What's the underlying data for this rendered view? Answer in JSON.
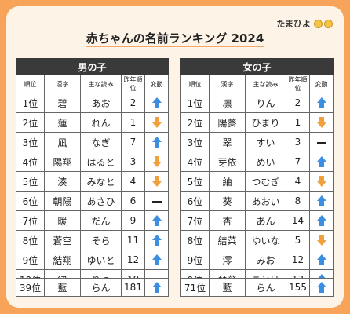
{
  "logo": "たまひよ",
  "title": "赤ちゃんの名前ランキング 2024",
  "col_headers": {
    "rank": "順位",
    "kanji": "漢字",
    "reading": "主な読み",
    "last": "昨年順位",
    "change": "変動"
  },
  "boys": {
    "title": "男の子",
    "rows": [
      {
        "rank": "1位",
        "kanji": "碧",
        "reading": "あお",
        "last": "2",
        "change": "up"
      },
      {
        "rank": "2位",
        "kanji": "蓮",
        "reading": "れん",
        "last": "1",
        "change": "down"
      },
      {
        "rank": "3位",
        "kanji": "凪",
        "reading": "なぎ",
        "last": "7",
        "change": "up"
      },
      {
        "rank": "4位",
        "kanji": "陽翔",
        "reading": "はると",
        "last": "3",
        "change": "down"
      },
      {
        "rank": "5位",
        "kanji": "湊",
        "reading": "みなと",
        "last": "4",
        "change": "down"
      },
      {
        "rank": "6位",
        "kanji": "朝陽",
        "reading": "あさひ",
        "last": "6",
        "change": "same"
      },
      {
        "rank": "7位",
        "kanji": "暖",
        "reading": "だん",
        "last": "9",
        "change": "up"
      },
      {
        "rank": "8位",
        "kanji": "蒼空",
        "reading": "そら",
        "last": "11",
        "change": "up"
      },
      {
        "rank": "9位",
        "kanji": "結翔",
        "reading": "ゆいと",
        "last": "12",
        "change": "up"
      },
      {
        "rank": "10位",
        "kanji": "律",
        "reading": "りつ",
        "last": "10",
        "change": "same"
      }
    ],
    "summary": {
      "rank": "39位",
      "kanji": "藍",
      "reading": "らん",
      "last": "181",
      "change": "up"
    }
  },
  "girls": {
    "title": "女の子",
    "rows": [
      {
        "rank": "1位",
        "kanji": "凛",
        "reading": "りん",
        "last": "2",
        "change": "up"
      },
      {
        "rank": "2位",
        "kanji": "陽葵",
        "reading": "ひまり",
        "last": "1",
        "change": "down"
      },
      {
        "rank": "3位",
        "kanji": "翠",
        "reading": "すい",
        "last": "3",
        "change": "same"
      },
      {
        "rank": "4位",
        "kanji": "芽依",
        "reading": "めい",
        "last": "7",
        "change": "up"
      },
      {
        "rank": "5位",
        "kanji": "紬",
        "reading": "つむぎ",
        "last": "4",
        "change": "down"
      },
      {
        "rank": "6位",
        "kanji": "葵",
        "reading": "あおい",
        "last": "8",
        "change": "up"
      },
      {
        "rank": "7位",
        "kanji": "杏",
        "reading": "あん",
        "last": "14",
        "change": "up"
      },
      {
        "rank": "8位",
        "kanji": "結菜",
        "reading": "ゆいな",
        "last": "5",
        "change": "down"
      },
      {
        "rank": "9位",
        "kanji": "澪",
        "reading": "みお",
        "last": "12",
        "change": "up"
      },
      {
        "rank": "9位",
        "kanji": "琴葉",
        "reading": "ことは",
        "last": "13",
        "change": "up"
      }
    ],
    "summary": {
      "rank": "71位",
      "kanji": "藍",
      "reading": "らん",
      "last": "155",
      "change": "up"
    }
  },
  "colors": {
    "frame": "#f7a45a",
    "card": "#fdf3e6",
    "header": "#3a3a3a",
    "up": "#3b8fe2",
    "down": "#f2a03c"
  }
}
